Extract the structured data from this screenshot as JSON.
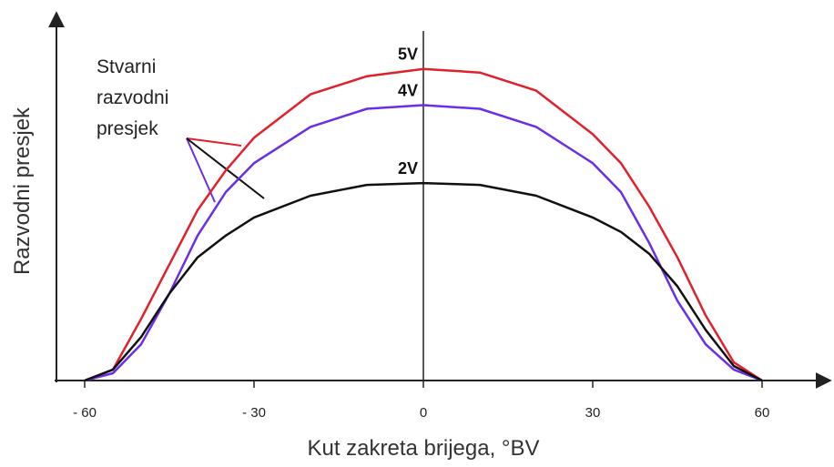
{
  "chart_data": {
    "type": "line",
    "xlabel": "Kut zakreta brijega, °BV",
    "ylabel": "Razvodni presjek",
    "annotation": [
      "Stvarni",
      "razvodni",
      "presjek"
    ],
    "x": [
      -60,
      -55,
      -50,
      -45,
      -40,
      -35,
      -30,
      -20,
      -10,
      0,
      10,
      20,
      30,
      35,
      40,
      45,
      50,
      55,
      60
    ],
    "series": [
      {
        "name": "5V",
        "color": "#e0202a",
        "values": [
          0,
          3,
          17,
          32,
          47,
          58,
          67,
          79,
          84,
          86,
          85,
          80,
          68,
          60,
          48,
          34,
          18,
          5,
          0
        ]
      },
      {
        "name": "4V",
        "color": "#6a2ee8",
        "values": [
          0,
          2,
          10,
          24,
          40,
          52,
          60,
          70,
          75,
          76,
          75,
          70,
          60,
          52,
          38,
          22,
          10,
          3,
          0
        ]
      },
      {
        "name": "2V",
        "color": "#111111",
        "values": [
          0,
          3,
          12,
          24,
          34,
          40,
          45,
          51,
          54,
          54.5,
          54,
          51,
          45,
          41,
          35,
          26,
          14,
          4,
          0
        ]
      }
    ],
    "xlim": [
      -66,
      71
    ],
    "ylim": [
      0,
      100
    ],
    "xticks": [
      {
        "value": -60,
        "label": "- 60"
      },
      {
        "value": -30,
        "label": "- 30"
      },
      0,
      30,
      60
    ]
  }
}
